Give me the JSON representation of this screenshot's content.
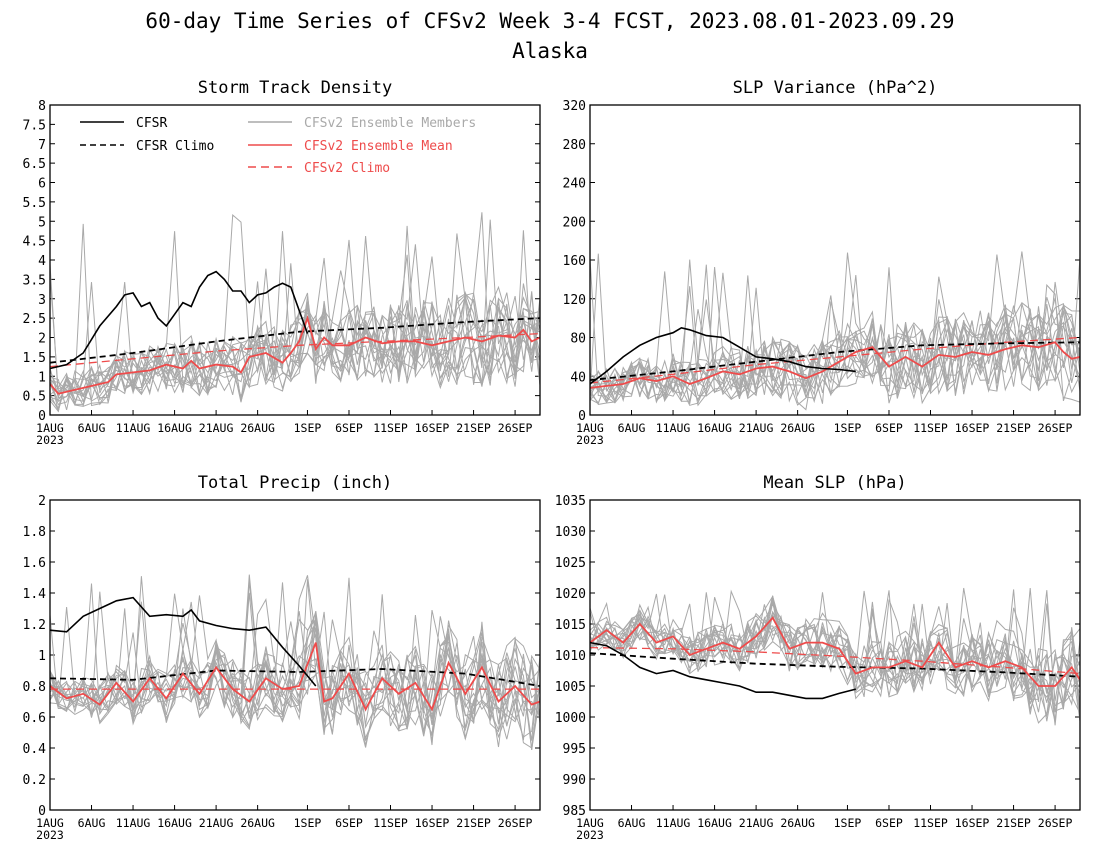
{
  "page": {
    "title_line1": "60-day Time Series of CFSv2 Week 3-4 FCST, 2023.08.01-2023.09.29",
    "title_line2": "Alaska"
  },
  "legend": {
    "cfsr": "CFSR",
    "cfsr_climo": "CFSR Climo",
    "members": "CFSv2 Ensemble Members",
    "ens_mean": "CFSv2 Ensemble Mean",
    "cfsv2_climo": "CFSv2 Climo"
  },
  "colors": {
    "cfsr": "#000000",
    "members": "#a9a9a9",
    "ens_mean": "#ee4b4b",
    "grid_frame": "#000000"
  },
  "x_axis": {
    "ticks": [
      "1AUG",
      "6AUG",
      "11AUG",
      "16AUG",
      "21AUG",
      "26AUG",
      "1SEP",
      "6SEP",
      "11SEP",
      "16SEP",
      "21SEP",
      "26SEP"
    ],
    "tick_days": [
      0,
      5,
      10,
      15,
      20,
      25,
      31,
      36,
      41,
      46,
      51,
      56
    ],
    "year_label": "2023",
    "n_days": 60
  },
  "chart_data": [
    {
      "type": "line",
      "title": "Storm Track Density",
      "ylim": [
        0,
        8
      ],
      "yticks": [
        "0",
        "0.5",
        "1",
        "1.5",
        "2",
        "2.5",
        "3",
        "3.5",
        "4",
        "4.5",
        "5",
        "5.5",
        "6",
        "6.5",
        "7",
        "7.5",
        "8"
      ],
      "series": [
        {
          "name": "CFSR",
          "style": "cfsr",
          "x_days": [
            0,
            2,
            4,
            6,
            8,
            9,
            10,
            11,
            12,
            13,
            14,
            15,
            16,
            17,
            18,
            19,
            20,
            21,
            22,
            23,
            24,
            25,
            26,
            27,
            28,
            29,
            31
          ],
          "values": [
            1.2,
            1.3,
            1.6,
            2.3,
            2.8,
            3.1,
            3.15,
            2.8,
            2.9,
            2.5,
            2.3,
            2.6,
            2.9,
            2.8,
            3.3,
            3.6,
            3.7,
            3.5,
            3.2,
            3.2,
            2.9,
            3.1,
            3.15,
            3.3,
            3.4,
            3.3,
            2.1
          ]
        },
        {
          "name": "CFSR Climo",
          "style": "cfsr_climo",
          "x_days": [
            0,
            10,
            20,
            30,
            40,
            50,
            59
          ],
          "values": [
            1.35,
            1.6,
            1.9,
            2.15,
            2.25,
            2.4,
            2.5
          ]
        },
        {
          "name": "CFSv2 Ensemble Mean",
          "style": "ens_mean",
          "x_days": [
            0,
            1,
            2,
            4,
            6,
            7,
            8,
            10,
            12,
            14,
            16,
            17,
            18,
            20,
            22,
            23,
            24,
            26,
            28,
            29,
            30,
            31,
            32,
            33,
            34,
            36,
            38,
            40,
            42,
            44,
            46,
            48,
            50,
            52,
            54,
            56,
            57,
            58,
            59
          ],
          "values": [
            0.8,
            0.55,
            0.6,
            0.7,
            0.8,
            0.85,
            1.05,
            1.1,
            1.15,
            1.3,
            1.2,
            1.4,
            1.2,
            1.3,
            1.25,
            1.1,
            1.5,
            1.6,
            1.35,
            1.6,
            1.9,
            2.5,
            1.7,
            2.0,
            1.8,
            1.8,
            2.0,
            1.85,
            1.9,
            1.9,
            1.8,
            1.9,
            2.0,
            1.9,
            2.05,
            2.0,
            2.2,
            1.9,
            2.0
          ]
        },
        {
          "name": "CFSv2 Climo",
          "style": "cfsv2_climo",
          "x_days": [
            0,
            10,
            20,
            30,
            40,
            50,
            59
          ],
          "values": [
            1.25,
            1.45,
            1.65,
            1.8,
            1.9,
            2.0,
            2.1
          ]
        }
      ],
      "members_band": {
        "center": "ens_mean",
        "spread": 0.9,
        "spike_max": 5.3
      }
    },
    {
      "type": "line",
      "title": "SLP Variance (hPa^2)",
      "ylim": [
        0,
        320
      ],
      "yticks": [
        "0",
        "40",
        "80",
        "120",
        "160",
        "200",
        "240",
        "280",
        "320"
      ],
      "series": [
        {
          "name": "CFSR",
          "style": "cfsr",
          "x_days": [
            0,
            2,
            4,
            6,
            8,
            10,
            11,
            12,
            14,
            16,
            18,
            20,
            22,
            24,
            26,
            28,
            30,
            32
          ],
          "values": [
            32,
            45,
            60,
            72,
            80,
            85,
            90,
            88,
            82,
            80,
            70,
            60,
            58,
            55,
            50,
            48,
            47,
            45
          ]
        },
        {
          "name": "CFSR Climo",
          "style": "cfsr_climo",
          "x_days": [
            0,
            10,
            20,
            30,
            40,
            50,
            59
          ],
          "values": [
            36,
            45,
            55,
            65,
            72,
            74,
            75
          ]
        },
        {
          "name": "CFSv2 Ensemble Mean",
          "style": "ens_mean",
          "x_days": [
            0,
            2,
            4,
            6,
            8,
            10,
            12,
            14,
            16,
            18,
            20,
            22,
            24,
            26,
            28,
            30,
            32,
            34,
            36,
            38,
            40,
            42,
            44,
            46,
            48,
            50,
            52,
            54,
            56,
            57,
            58,
            59
          ],
          "values": [
            28,
            30,
            32,
            38,
            35,
            40,
            32,
            38,
            45,
            42,
            48,
            50,
            45,
            38,
            45,
            55,
            65,
            70,
            50,
            60,
            50,
            62,
            60,
            65,
            62,
            68,
            72,
            70,
            75,
            65,
            58,
            60
          ]
        },
        {
          "name": "CFSv2 Climo",
          "style": "cfsv2_climo",
          "x_days": [
            0,
            10,
            20,
            30,
            40,
            50,
            59
          ],
          "values": [
            33,
            42,
            52,
            60,
            68,
            75,
            80
          ]
        }
      ],
      "members_band": {
        "center": "ens_mean",
        "spread": 35,
        "spike_max": 170
      }
    },
    {
      "type": "line",
      "title": "Total Precip (inch)",
      "ylim": [
        0,
        2
      ],
      "yticks": [
        "0",
        "0.2",
        "0.4",
        "0.6",
        "0.8",
        "1",
        "1.2",
        "1.4",
        "1.6",
        "1.8",
        "2"
      ],
      "series": [
        {
          "name": "CFSR",
          "style": "cfsr",
          "x_days": [
            0,
            2,
            4,
            6,
            8,
            10,
            12,
            14,
            16,
            17,
            18,
            20,
            22,
            24,
            26,
            28,
            30,
            32
          ],
          "values": [
            1.16,
            1.15,
            1.25,
            1.3,
            1.35,
            1.37,
            1.25,
            1.26,
            1.25,
            1.29,
            1.22,
            1.19,
            1.17,
            1.16,
            1.18,
            1.05,
            0.93,
            0.8
          ]
        },
        {
          "name": "CFSR Climo",
          "style": "cfsr_climo",
          "x_days": [
            0,
            10,
            20,
            30,
            40,
            50,
            59
          ],
          "values": [
            0.85,
            0.84,
            0.9,
            0.89,
            0.91,
            0.88,
            0.8
          ]
        },
        {
          "name": "CFSv2 Ensemble Mean",
          "style": "ens_mean",
          "x_days": [
            0,
            2,
            4,
            6,
            8,
            10,
            12,
            14,
            16,
            18,
            20,
            22,
            24,
            26,
            28,
            30,
            32,
            33,
            34,
            36,
            38,
            40,
            42,
            44,
            46,
            48,
            50,
            52,
            54,
            56,
            58,
            59
          ],
          "values": [
            0.8,
            0.72,
            0.75,
            0.68,
            0.82,
            0.7,
            0.85,
            0.72,
            0.88,
            0.75,
            0.92,
            0.78,
            0.7,
            0.85,
            0.78,
            0.8,
            1.08,
            0.7,
            0.72,
            0.88,
            0.65,
            0.85,
            0.75,
            0.82,
            0.65,
            0.95,
            0.75,
            0.92,
            0.7,
            0.8,
            0.68,
            0.7
          ]
        },
        {
          "name": "CFSv2 Climo",
          "style": "cfsv2_climo",
          "x_days": [
            0,
            10,
            20,
            30,
            40,
            50,
            59
          ],
          "values": [
            0.78,
            0.78,
            0.78,
            0.78,
            0.78,
            0.78,
            0.78
          ]
        }
      ],
      "members_band": {
        "center": "ens_mean",
        "spread": 0.22,
        "spike_max": 1.53
      }
    },
    {
      "type": "line",
      "title": "Mean SLP (hPa)",
      "ylim": [
        985,
        1035
      ],
      "yticks": [
        "985",
        "990",
        "995",
        "1000",
        "1005",
        "1010",
        "1015",
        "1020",
        "1025",
        "1030",
        "1035"
      ],
      "series": [
        {
          "name": "CFSR",
          "style": "cfsr",
          "x_days": [
            0,
            2,
            4,
            6,
            8,
            10,
            12,
            14,
            16,
            18,
            20,
            22,
            24,
            26,
            28,
            30,
            32
          ],
          "values": [
            1012,
            1011.5,
            1010,
            1008,
            1007,
            1007.5,
            1006.5,
            1006,
            1005.5,
            1005,
            1004,
            1004,
            1003.5,
            1003,
            1003,
            1003.8,
            1004.5
          ]
        },
        {
          "name": "CFSR Climo",
          "style": "cfsr_climo",
          "x_days": [
            0,
            10,
            20,
            30,
            40,
            50,
            59
          ],
          "values": [
            1010.3,
            1009.4,
            1008.6,
            1008.1,
            1007.8,
            1007.2,
            1006.5
          ]
        },
        {
          "name": "CFSv2 Ensemble Mean",
          "style": "ens_mean",
          "x_days": [
            0,
            1,
            2,
            4,
            6,
            8,
            10,
            12,
            14,
            16,
            18,
            20,
            22,
            24,
            26,
            28,
            30,
            32,
            34,
            36,
            38,
            40,
            42,
            44,
            46,
            48,
            50,
            52,
            54,
            56,
            58,
            59
          ],
          "values": [
            1012,
            1013,
            1014,
            1012,
            1015,
            1012,
            1013,
            1010,
            1011,
            1012,
            1011,
            1013,
            1016,
            1011,
            1012,
            1012,
            1011,
            1007,
            1008,
            1008,
            1009,
            1008,
            1012,
            1008,
            1009,
            1008,
            1009,
            1008,
            1005,
            1005,
            1008,
            1006
          ]
        },
        {
          "name": "CFSv2 Climo",
          "style": "cfsv2_climo",
          "x_days": [
            0,
            10,
            20,
            30,
            40,
            50,
            59
          ],
          "values": [
            1011.2,
            1011.0,
            1010.5,
            1009.8,
            1009.0,
            1008.0,
            1007.0
          ]
        }
      ],
      "members_band": {
        "center": "ens_mean",
        "spread": 4.5,
        "spike_max": 1021
      }
    }
  ]
}
